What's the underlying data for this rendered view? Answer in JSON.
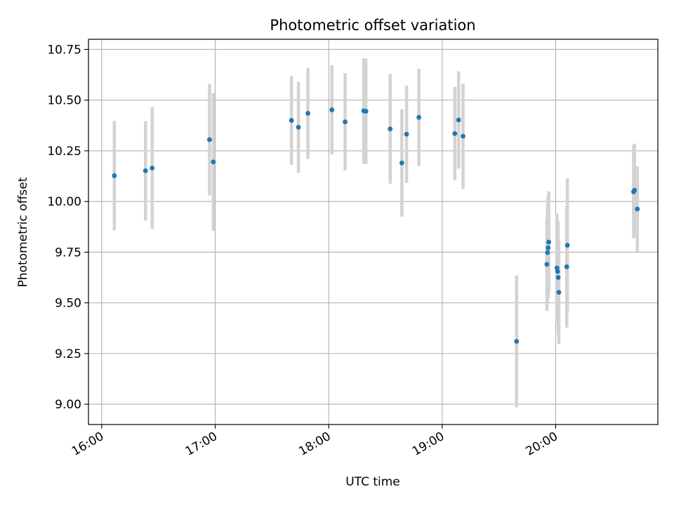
{
  "chart_data": {
    "type": "scatter",
    "title": "Photometric offset variation",
    "xlabel": "UTC time",
    "ylabel": "Photometric offset",
    "x_unit": "UTC time (HH:MM)",
    "xlim": [
      "15:53",
      "20:54"
    ],
    "ylim": [
      8.9,
      10.8
    ],
    "x_ticks": [
      "16:00",
      "17:00",
      "18:00",
      "19:00",
      "20:00"
    ],
    "y_ticks": [
      "9.00",
      "9.25",
      "9.50",
      "9.75",
      "10.00",
      "10.25",
      "10.50",
      "10.75"
    ],
    "grid": true,
    "legend": "none",
    "colors": {
      "point": "#1f77b4",
      "errorbar": "#d3d3d3",
      "grid": "#b0b0b0"
    },
    "series": [
      {
        "points": [
          {
            "x": "16:06:40",
            "y": 10.127,
            "err": 0.27
          },
          {
            "x": "16:23:10",
            "y": 10.152,
            "err": 0.245
          },
          {
            "x": "16:26:40",
            "y": 10.165,
            "err": 0.3
          },
          {
            "x": "16:57:00",
            "y": 10.305,
            "err": 0.275
          },
          {
            "x": "16:59:00",
            "y": 10.195,
            "err": 0.34
          },
          {
            "x": "17:40:20",
            "y": 10.4,
            "err": 0.22
          },
          {
            "x": "17:44:00",
            "y": 10.366,
            "err": 0.225
          },
          {
            "x": "17:49:00",
            "y": 10.435,
            "err": 0.225
          },
          {
            "x": "18:01:40",
            "y": 10.452,
            "err": 0.22
          },
          {
            "x": "18:08:40",
            "y": 10.393,
            "err": 0.24
          },
          {
            "x": "18:18:30",
            "y": 10.447,
            "err": 0.26
          },
          {
            "x": "18:19:40",
            "y": 10.445,
            "err": 0.26
          },
          {
            "x": "18:32:30",
            "y": 10.358,
            "err": 0.27
          },
          {
            "x": "18:38:40",
            "y": 10.19,
            "err": 0.265
          },
          {
            "x": "18:41:10",
            "y": 10.332,
            "err": 0.24
          },
          {
            "x": "18:47:40",
            "y": 10.415,
            "err": 0.24
          },
          {
            "x": "19:06:40",
            "y": 10.335,
            "err": 0.23
          },
          {
            "x": "19:08:40",
            "y": 10.402,
            "err": 0.24
          },
          {
            "x": "19:11:00",
            "y": 10.322,
            "err": 0.26
          },
          {
            "x": "19:39:20",
            "y": 9.31,
            "err": 0.325
          },
          {
            "x": "19:55:20",
            "y": 9.69,
            "err": 0.23
          },
          {
            "x": "19:55:40",
            "y": 9.748,
            "err": 0.24
          },
          {
            "x": "19:56:00",
            "y": 9.772,
            "err": 0.25
          },
          {
            "x": "19:56:20",
            "y": 9.8,
            "err": 0.25
          },
          {
            "x": "20:00:40",
            "y": 9.672,
            "err": 0.27
          },
          {
            "x": "20:01:00",
            "y": 9.655,
            "err": 0.25
          },
          {
            "x": "20:01:20",
            "y": 9.625,
            "err": 0.28
          },
          {
            "x": "20:01:40",
            "y": 9.552,
            "err": 0.255
          },
          {
            "x": "20:05:50",
            "y": 9.678,
            "err": 0.3
          },
          {
            "x": "20:06:10",
            "y": 9.784,
            "err": 0.33
          },
          {
            "x": "20:41:10",
            "y": 10.048,
            "err": 0.23
          },
          {
            "x": "20:41:40",
            "y": 10.055,
            "err": 0.23
          },
          {
            "x": "20:43:10",
            "y": 9.963,
            "err": 0.21
          }
        ]
      }
    ]
  }
}
